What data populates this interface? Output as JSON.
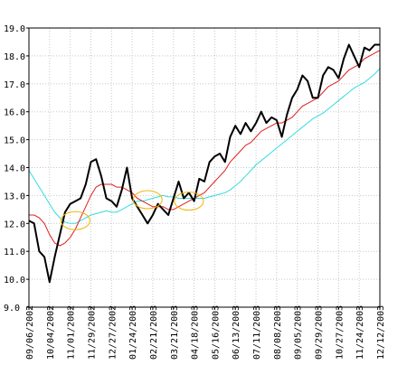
{
  "colors": {
    "background": "#ffffff",
    "axis": "#000000",
    "grid": "#c8c8c8",
    "price_line": "#000000",
    "fast_ma": "#e02020",
    "slow_ma": "#33dddd",
    "highlight_circle": "#f0b400"
  },
  "chart_data": {
    "type": "line",
    "title": "",
    "xlabel": "",
    "ylabel": "",
    "ylim": [
      9.0,
      19.0
    ],
    "yticks": [
      "9.0",
      "10.0",
      "11.0",
      "12.0",
      "13.0",
      "14.0",
      "15.0",
      "16.0",
      "17.0",
      "18.0",
      "19.0"
    ],
    "grid": true,
    "legend": "none",
    "xticks": [
      "09/06/2002",
      "10/04/2002",
      "11/01/2002",
      "11/29/2002",
      "12/27/2002",
      "01/24/2003",
      "02/21/2003",
      "03/21/2003",
      "04/18/2003",
      "05/16/2003",
      "06/13/2003",
      "07/11/2003",
      "08/08/2003",
      "09/05/2003",
      "09/29/2003",
      "10/27/2003",
      "11/24/2003",
      "12/12/2003"
    ],
    "series": [
      {
        "key": "price",
        "color": "#000000",
        "y": [
          12.1,
          12.0,
          11.0,
          10.8,
          9.9,
          10.8,
          11.6,
          12.4,
          12.7,
          12.8,
          12.9,
          13.4,
          14.2,
          14.3,
          13.7,
          12.9,
          12.8,
          12.6,
          13.2,
          14.0,
          12.9,
          12.6,
          12.3,
          12.0,
          12.3,
          12.7,
          12.5,
          12.3,
          12.9,
          13.5,
          12.9,
          13.1,
          12.8,
          13.6,
          13.5,
          14.2,
          14.4,
          14.5,
          14.2,
          15.1,
          15.5,
          15.2,
          15.6,
          15.3,
          15.6,
          16.0,
          15.6,
          15.8,
          15.7,
          15.1,
          15.9,
          16.5,
          16.8,
          17.3,
          17.1,
          16.5,
          16.5,
          17.3,
          17.6,
          17.5,
          17.2,
          17.9,
          18.4,
          18.0,
          17.6,
          18.3,
          18.2,
          18.4,
          18.4
        ]
      },
      {
        "key": "fast_ma",
        "color": "#e02020",
        "y": [
          12.3,
          12.3,
          12.2,
          12.0,
          11.6,
          11.3,
          11.2,
          11.3,
          11.5,
          11.8,
          12.2,
          12.6,
          13.0,
          13.3,
          13.4,
          13.4,
          13.4,
          13.3,
          13.3,
          13.2,
          13.1,
          12.9,
          12.8,
          12.7,
          12.6,
          12.6,
          12.6,
          12.5,
          12.5,
          12.6,
          12.7,
          12.8,
          12.9,
          13.0,
          13.1,
          13.3,
          13.5,
          13.7,
          13.9,
          14.2,
          14.4,
          14.6,
          14.8,
          14.9,
          15.1,
          15.3,
          15.4,
          15.5,
          15.6,
          15.6,
          15.7,
          15.8,
          16.0,
          16.2,
          16.3,
          16.4,
          16.5,
          16.7,
          16.9,
          17.0,
          17.1,
          17.3,
          17.5,
          17.6,
          17.7,
          17.9,
          18.0,
          18.1,
          18.2
        ]
      },
      {
        "key": "slow_ma",
        "color": "#33dddd",
        "y": [
          13.9,
          13.6,
          13.3,
          13.0,
          12.7,
          12.4,
          12.2,
          12.05,
          12.0,
          12.0,
          12.1,
          12.2,
          12.3,
          12.35,
          12.4,
          12.45,
          12.4,
          12.4,
          12.5,
          12.6,
          12.7,
          12.8,
          12.8,
          12.85,
          12.9,
          12.95,
          13.0,
          12.95,
          12.95,
          12.9,
          12.9,
          12.9,
          12.9,
          12.9,
          12.9,
          12.95,
          13.0,
          13.05,
          13.1,
          13.2,
          13.35,
          13.5,
          13.7,
          13.9,
          14.1,
          14.25,
          14.4,
          14.55,
          14.7,
          14.85,
          15.0,
          15.15,
          15.3,
          15.45,
          15.6,
          15.75,
          15.85,
          15.95,
          16.1,
          16.25,
          16.4,
          16.55,
          16.7,
          16.85,
          16.95,
          17.05,
          17.2,
          17.35,
          17.55
        ]
      }
    ],
    "annotations": [
      {
        "type": "circle",
        "x_index": 9,
        "y": 12.1
      },
      {
        "type": "circle",
        "x_index": 23,
        "y": 12.85
      },
      {
        "type": "circle",
        "x_index": 31,
        "y": 12.8
      }
    ]
  }
}
